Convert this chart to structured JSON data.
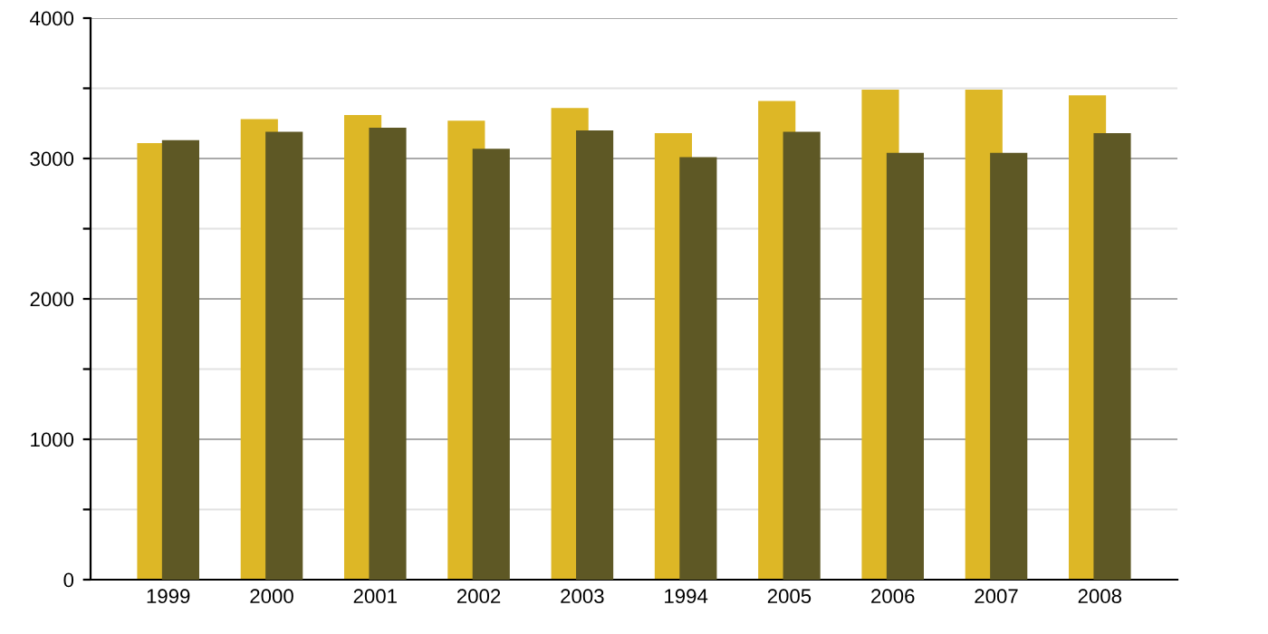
{
  "chart_data": {
    "type": "bar",
    "categories": [
      "1999",
      "2000",
      "2001",
      "2002",
      "2003",
      "1994",
      "2005",
      "2006",
      "2007",
      "2008"
    ],
    "series": [
      {
        "color": "#ddb726",
        "values": [
          3110,
          3280,
          3310,
          3270,
          3360,
          3180,
          3410,
          3490,
          3490,
          3450
        ]
      },
      {
        "color": "#5e5825",
        "values": [
          3130,
          3190,
          3220,
          3070,
          3200,
          3010,
          3190,
          3040,
          3040,
          3180
        ]
      }
    ],
    "ylim": [
      0,
      4000
    ],
    "yticks": [
      0,
      {
        "value": 500,
        "label": null
      },
      1000,
      {
        "value": 1500,
        "label": null
      },
      2000,
      {
        "value": 2500,
        "label": null
      },
      3000,
      {
        "value": 3500,
        "label": null
      },
      4000
    ],
    "grid": "y"
  }
}
